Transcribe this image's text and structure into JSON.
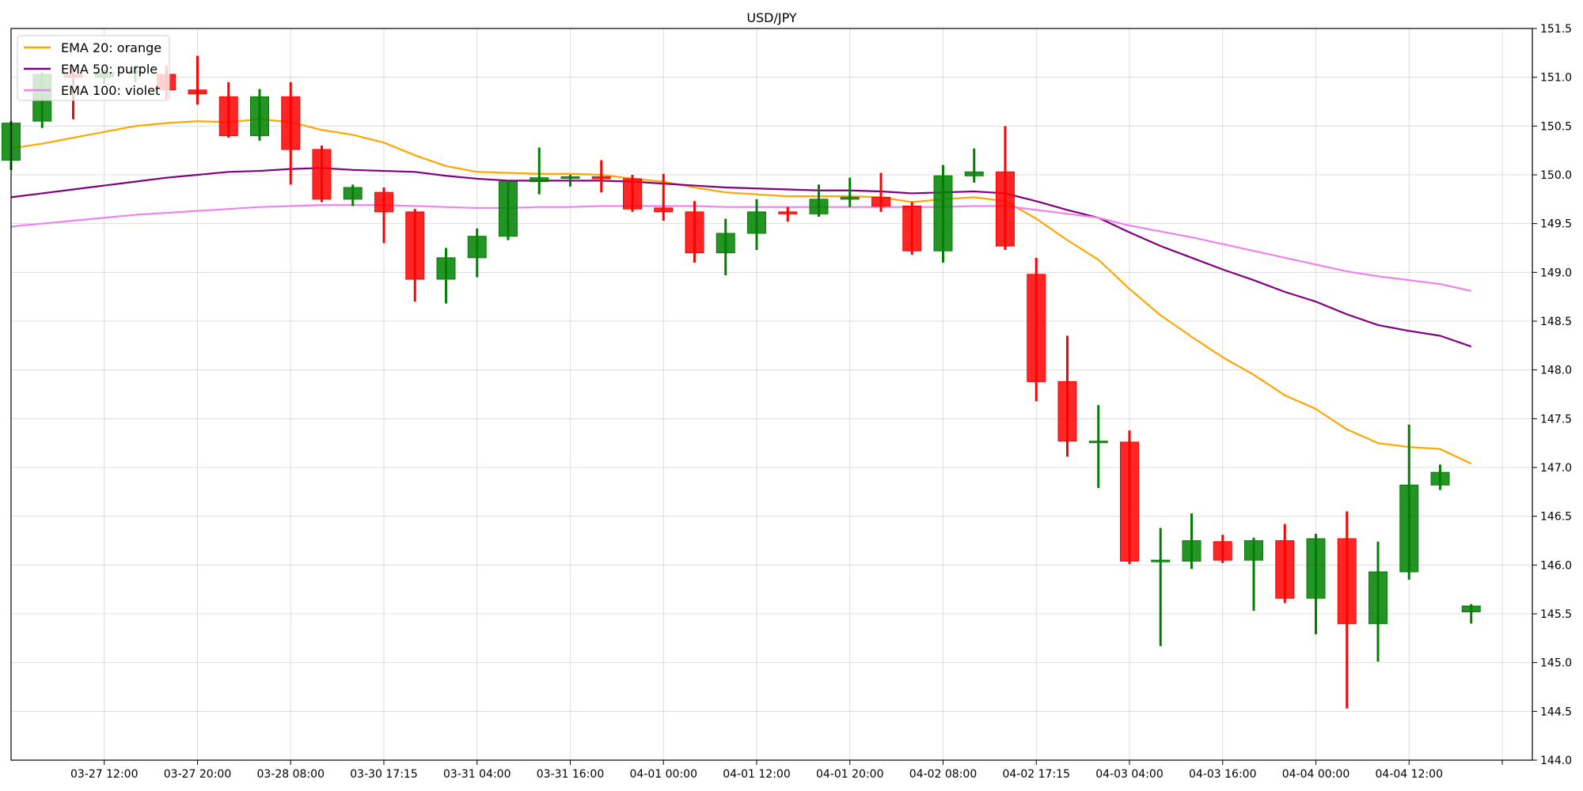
{
  "chart_data": {
    "type": "candlestick",
    "title": "USD/JPY",
    "xlabel": "",
    "ylabel": "",
    "ylim": [
      144.0,
      151.5
    ],
    "y_ticks": [
      144.0,
      144.5,
      145.0,
      145.5,
      146.0,
      146.5,
      147.0,
      147.5,
      148.0,
      148.5,
      149.0,
      149.5,
      150.0,
      150.5,
      151.0,
      151.5
    ],
    "y_axis_side": "right",
    "grid": true,
    "legend_placement": "top-left",
    "colors": {
      "up": "#008000",
      "down": "#ff0000",
      "ema20": "#ffa500",
      "ema50": "#800080",
      "ema100": "#ee82ee"
    },
    "x_tick_labels": [
      {
        "index": 3,
        "label": "03-27 12:00"
      },
      {
        "index": 6,
        "label": "03-27 20:00"
      },
      {
        "index": 9,
        "label": "03-28 08:00"
      },
      {
        "index": 12,
        "label": "03-30 17:15"
      },
      {
        "index": 15,
        "label": "03-31 04:00"
      },
      {
        "index": 18,
        "label": "03-31 16:00"
      },
      {
        "index": 21,
        "label": "04-01 00:00"
      },
      {
        "index": 24,
        "label": "04-01 12:00"
      },
      {
        "index": 27,
        "label": "04-01 20:00"
      },
      {
        "index": 30,
        "label": "04-02 08:00"
      },
      {
        "index": 33,
        "label": "04-02 17:15"
      },
      {
        "index": 36,
        "label": "04-03 04:00"
      },
      {
        "index": 39,
        "label": "04-03 16:00"
      },
      {
        "index": 42,
        "label": "04-04 00:00"
      },
      {
        "index": 45,
        "label": "04-04 12:00"
      },
      {
        "index": 48,
        "label": ""
      }
    ],
    "candles": [
      {
        "o": 150.15,
        "h": 150.55,
        "l": 150.05,
        "c": 150.53
      },
      {
        "o": 150.55,
        "h": 151.05,
        "l": 150.48,
        "c": 151.03
      },
      {
        "o": 151.03,
        "h": 151.12,
        "l": 150.57,
        "c": 151.0
      },
      {
        "o": 151.0,
        "h": 151.08,
        "l": 150.93,
        "c": 151.05
      },
      {
        "o": 151.05,
        "h": 151.12,
        "l": 150.95,
        "c": 151.06
      },
      {
        "o": 151.03,
        "h": 151.12,
        "l": 150.78,
        "c": 150.87
      },
      {
        "o": 150.87,
        "h": 151.22,
        "l": 150.72,
        "c": 150.83
      },
      {
        "o": 150.8,
        "h": 150.95,
        "l": 150.38,
        "c": 150.4
      },
      {
        "o": 150.4,
        "h": 150.88,
        "l": 150.35,
        "c": 150.8
      },
      {
        "o": 150.8,
        "h": 150.95,
        "l": 149.9,
        "c": 150.26
      },
      {
        "o": 150.26,
        "h": 150.3,
        "l": 149.72,
        "c": 149.75
      },
      {
        "o": 149.75,
        "h": 149.9,
        "l": 149.68,
        "c": 149.87
      },
      {
        "o": 149.82,
        "h": 149.87,
        "l": 149.3,
        "c": 149.62
      },
      {
        "o": 149.62,
        "h": 149.65,
        "l": 148.7,
        "c": 148.93
      },
      {
        "o": 148.93,
        "h": 149.25,
        "l": 148.68,
        "c": 149.15
      },
      {
        "o": 149.15,
        "h": 149.45,
        "l": 148.95,
        "c": 149.37
      },
      {
        "o": 149.37,
        "h": 149.93,
        "l": 149.33,
        "c": 149.93
      },
      {
        "o": 149.93,
        "h": 150.28,
        "l": 149.8,
        "c": 149.97
      },
      {
        "o": 149.97,
        "h": 150.0,
        "l": 149.88,
        "c": 149.98
      },
      {
        "o": 149.98,
        "h": 150.15,
        "l": 149.82,
        "c": 149.96
      },
      {
        "o": 149.96,
        "h": 150.0,
        "l": 149.62,
        "c": 149.65
      },
      {
        "o": 149.66,
        "h": 150.01,
        "l": 149.53,
        "c": 149.62
      },
      {
        "o": 149.62,
        "h": 149.73,
        "l": 149.1,
        "c": 149.2
      },
      {
        "o": 149.2,
        "h": 149.55,
        "l": 148.97,
        "c": 149.4
      },
      {
        "o": 149.4,
        "h": 149.75,
        "l": 149.23,
        "c": 149.62
      },
      {
        "o": 149.62,
        "h": 149.67,
        "l": 149.52,
        "c": 149.6
      },
      {
        "o": 149.6,
        "h": 149.9,
        "l": 149.57,
        "c": 149.75
      },
      {
        "o": 149.75,
        "h": 149.97,
        "l": 149.67,
        "c": 149.77
      },
      {
        "o": 149.77,
        "h": 150.02,
        "l": 149.62,
        "c": 149.68
      },
      {
        "o": 149.68,
        "h": 149.72,
        "l": 149.18,
        "c": 149.22
      },
      {
        "o": 149.22,
        "h": 150.1,
        "l": 149.1,
        "c": 149.99
      },
      {
        "o": 149.99,
        "h": 150.27,
        "l": 149.92,
        "c": 150.03
      },
      {
        "o": 150.03,
        "h": 150.5,
        "l": 149.23,
        "c": 149.27
      },
      {
        "o": 148.98,
        "h": 149.15,
        "l": 147.68,
        "c": 147.88
      },
      {
        "o": 147.88,
        "h": 148.35,
        "l": 147.11,
        "c": 147.27
      },
      {
        "o": 147.27,
        "h": 147.64,
        "l": 146.79,
        "c": 147.27
      },
      {
        "o": 147.26,
        "h": 147.38,
        "l": 146.01,
        "c": 146.04
      },
      {
        "o": 146.05,
        "h": 146.38,
        "l": 145.17,
        "c": 146.05
      },
      {
        "o": 146.04,
        "h": 146.53,
        "l": 145.96,
        "c": 146.25
      },
      {
        "o": 146.24,
        "h": 146.31,
        "l": 146.02,
        "c": 146.05
      },
      {
        "o": 146.05,
        "h": 146.28,
        "l": 145.53,
        "c": 146.25
      },
      {
        "o": 146.25,
        "h": 146.42,
        "l": 145.61,
        "c": 145.66
      },
      {
        "o": 145.66,
        "h": 146.32,
        "l": 145.29,
        "c": 146.27
      },
      {
        "o": 146.27,
        "h": 146.55,
        "l": 144.53,
        "c": 145.4
      },
      {
        "o": 145.4,
        "h": 146.24,
        "l": 145.01,
        "c": 145.93
      },
      {
        "o": 145.93,
        "h": 147.44,
        "l": 145.85,
        "c": 146.82
      },
      {
        "o": 146.82,
        "h": 147.03,
        "l": 146.77,
        "c": 146.95
      },
      {
        "o": 145.52,
        "h": 145.6,
        "l": 145.4,
        "c": 145.58
      }
    ],
    "series": [
      {
        "name": "EMA 20: orange",
        "color": "#ffa500",
        "values": [
          150.27,
          150.32,
          150.38,
          150.44,
          150.5,
          150.53,
          150.55,
          150.54,
          150.57,
          150.54,
          150.46,
          150.41,
          150.33,
          150.2,
          150.09,
          150.03,
          150.02,
          150.01,
          150.01,
          150.0,
          149.96,
          149.93,
          149.87,
          149.82,
          149.8,
          149.78,
          149.78,
          149.78,
          149.77,
          149.72,
          149.75,
          149.77,
          149.73,
          149.55,
          149.33,
          149.13,
          148.83,
          148.56,
          148.34,
          148.13,
          147.95,
          147.74,
          147.6,
          147.39,
          147.25,
          147.21,
          147.19,
          147.04
        ]
      },
      {
        "name": "EMA 50: purple",
        "color": "#800080",
        "values": [
          149.77,
          149.81,
          149.85,
          149.89,
          149.93,
          149.97,
          150.0,
          150.03,
          150.04,
          150.06,
          150.07,
          150.05,
          150.04,
          150.03,
          149.99,
          149.96,
          149.94,
          149.94,
          149.94,
          149.94,
          149.93,
          149.91,
          149.89,
          149.87,
          149.86,
          149.85,
          149.84,
          149.84,
          149.83,
          149.81,
          149.82,
          149.83,
          149.81,
          149.73,
          149.64,
          149.56,
          149.41,
          149.27,
          149.15,
          149.03,
          148.92,
          148.8,
          148.7,
          148.57,
          148.46,
          148.4,
          148.35,
          148.24
        ]
      },
      {
        "name": "EMA 100: violet",
        "color": "#ee82ee",
        "values": [
          149.47,
          149.5,
          149.53,
          149.56,
          149.59,
          149.61,
          149.63,
          149.65,
          149.67,
          149.68,
          149.69,
          149.69,
          149.69,
          149.68,
          149.67,
          149.66,
          149.66,
          149.67,
          149.67,
          149.68,
          149.68,
          149.68,
          149.68,
          149.67,
          149.67,
          149.67,
          149.67,
          149.67,
          149.67,
          149.67,
          149.67,
          149.68,
          149.68,
          149.64,
          149.6,
          149.56,
          149.48,
          149.42,
          149.36,
          149.29,
          149.22,
          149.15,
          149.08,
          149.01,
          148.96,
          148.92,
          148.88,
          148.81
        ]
      }
    ]
  }
}
